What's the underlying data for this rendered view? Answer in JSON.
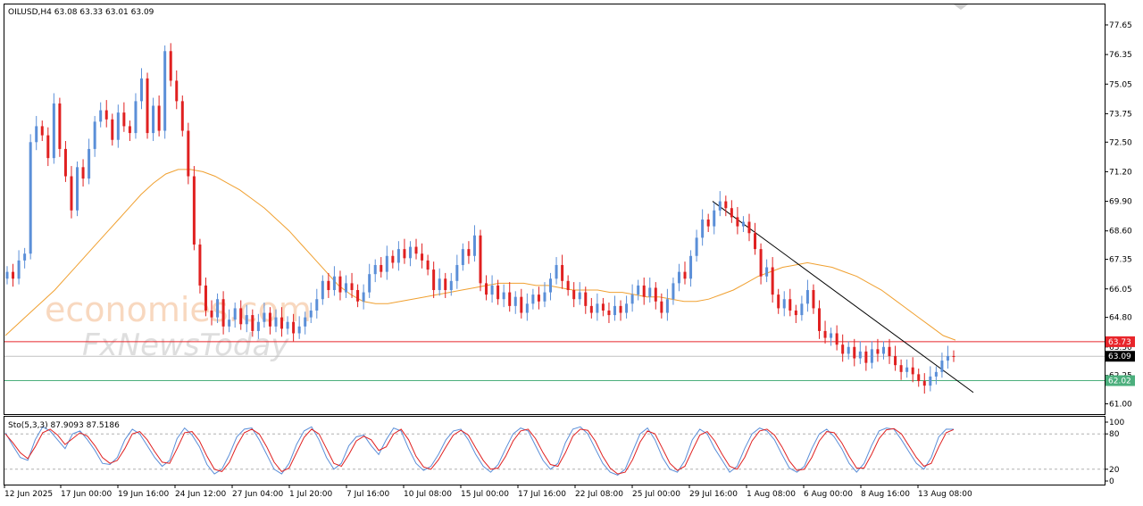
{
  "chart_data": [
    {
      "type": "candlestick",
      "title": "OILUSD,H4  63.08 63.33 63.01 63.09",
      "y_ticks": [
        "77.65",
        "76.35",
        "75.05",
        "73.75",
        "72.50",
        "71.20",
        "69.90",
        "68.60",
        "67.35",
        "66.05",
        "64.80",
        "63.50",
        "62.25",
        "61.00"
      ],
      "x_ticks": [
        "12 Jun 2025",
        "17 Jun 00:00",
        "19 Jun 16:00",
        "24 Jun 12:00",
        "27 Jun 04:00",
        "1 Jul 20:00",
        "7 Jul 16:00",
        "10 Jul 08:00",
        "15 Jul 00:00",
        "17 Jul 16:00",
        "22 Jul 08:00",
        "25 Jul 00:00",
        "29 Jul 16:00",
        "1 Aug 08:00",
        "6 Aug 00:00",
        "8 Aug 16:00",
        "13 Aug 08:00"
      ],
      "ylim": [
        60.55,
        78.55
      ],
      "price_levels": [
        {
          "label": "63.73",
          "value": 63.73,
          "color": "#e8262b"
        },
        {
          "label": "63.09",
          "value": 63.09,
          "color": "#000000"
        },
        {
          "label": "62.02",
          "value": 62.02,
          "color": "#4caf7d"
        }
      ],
      "moving_average_color": "#f0a030",
      "trendline": {
        "start": 69.9,
        "end": 61.5,
        "color": "#000000"
      },
      "bull_color": "#5b8fd8",
      "bear_color": "#e02020",
      "candles": [
        66.8,
        66.5,
        67.3,
        67.6,
        72.5,
        73.2,
        72.8,
        71.8,
        74.2,
        72.2,
        71.0,
        69.5,
        71.4,
        70.9,
        72.2,
        73.4,
        73.9,
        73.5,
        72.6,
        73.8,
        73.2,
        72.9,
        74.3,
        75.3,
        72.9,
        74.1,
        73.0,
        76.5,
        75.2,
        74.3,
        73.0,
        71.0,
        68.0,
        66.2,
        65.1,
        64.8,
        65.6,
        64.4,
        64.7,
        65.2,
        64.5,
        64.9,
        64.2,
        64.6,
        65.0,
        64.4,
        64.8,
        64.3,
        64.6,
        64.1,
        64.4,
        64.8,
        65.1,
        65.6,
        66.4,
        66.0,
        66.6,
        65.9,
        66.3,
        66.0,
        65.5,
        65.9,
        66.7,
        67.1,
        66.8,
        67.5,
        67.2,
        67.8,
        67.4,
        67.9,
        67.6,
        67.3,
        66.9,
        66.0,
        66.5,
        66.0,
        66.4,
        67.1,
        67.8,
        67.5,
        68.4,
        66.3,
        65.8,
        66.2,
        65.6,
        65.9,
        65.3,
        65.7,
        65.0,
        65.4,
        65.8,
        65.5,
        65.9,
        66.5,
        67.1,
        66.4,
        66.0,
        65.6,
        65.9,
        65.3,
        65.0,
        65.4,
        65.1,
        64.9,
        65.3,
        65.0,
        65.4,
        65.8,
        66.2,
        65.7,
        66.1,
        65.5,
        65.0,
        65.6,
        66.3,
        66.8,
        66.5,
        67.5,
        68.3,
        69.1,
        68.8,
        69.5,
        69.9,
        69.6,
        69.2,
        68.8,
        69.0,
        68.5,
        67.8,
        66.6,
        67.0,
        65.8,
        65.2,
        65.6,
        65.1,
        64.9,
        65.4,
        66.0,
        65.2,
        64.2,
        63.9,
        64.1,
        63.6,
        63.2,
        63.5,
        63.0,
        63.3,
        62.8,
        63.4,
        63.2,
        63.5,
        63.1,
        62.7,
        62.4,
        62.6,
        62.3,
        62.0,
        61.8,
        62.2,
        62.4,
        62.9,
        63.1,
        63.09
      ],
      "ma": [
        64.0,
        64.5,
        65.0,
        65.5,
        66.0,
        66.6,
        67.2,
        67.8,
        68.4,
        69.0,
        69.6,
        70.2,
        70.7,
        71.1,
        71.3,
        71.3,
        71.2,
        71.0,
        70.7,
        70.4,
        70.0,
        69.6,
        69.1,
        68.6,
        68.0,
        67.4,
        66.8,
        66.2,
        65.8,
        65.5,
        65.4,
        65.4,
        65.5,
        65.6,
        65.7,
        65.8,
        65.9,
        66.0,
        66.1,
        66.2,
        66.3,
        66.3,
        66.3,
        66.2,
        66.2,
        66.1,
        66.0,
        66.0,
        66.0,
        65.9,
        65.9,
        65.8,
        65.7,
        65.7,
        65.6,
        65.5,
        65.5,
        65.6,
        65.8,
        66.0,
        66.3,
        66.6,
        66.8,
        67.0,
        67.1,
        67.2,
        67.1,
        67.0,
        66.8,
        66.6,
        66.3,
        66.0,
        65.6,
        65.2,
        64.8,
        64.4,
        64.0,
        63.8
      ]
    },
    {
      "type": "line",
      "title": "Sto(5,3,3) 87.9093 87.5186",
      "y_ticks": [
        "100",
        "80",
        "20",
        "0"
      ],
      "ylim": [
        0,
        100
      ],
      "levels": [
        80,
        20
      ],
      "series": [
        {
          "color": "#5b8fd8",
          "values": [
            82,
            60,
            40,
            35,
            70,
            92,
            85,
            70,
            55,
            80,
            85,
            70,
            52,
            30,
            28,
            40,
            70,
            88,
            80,
            60,
            40,
            25,
            35,
            72,
            90,
            78,
            58,
            28,
            12,
            20,
            45,
            75,
            88,
            90,
            70,
            45,
            20,
            12,
            30,
            62,
            85,
            92,
            70,
            40,
            20,
            30,
            60,
            75,
            78,
            60,
            45,
            70,
            90,
            85,
            55,
            30,
            18,
            25,
            45,
            70,
            85,
            88,
            70,
            45,
            25,
            15,
            28,
            55,
            80,
            90,
            85,
            60,
            35,
            20,
            30,
            65,
            88,
            92,
            80,
            55,
            30,
            15,
            10,
            20,
            50,
            80,
            90,
            70,
            40,
            20,
            15,
            35,
            70,
            88,
            80,
            55,
            35,
            15,
            25,
            55,
            80,
            90,
            85,
            70,
            45,
            22,
            15,
            25,
            55,
            80,
            88,
            75,
            55,
            30,
            15,
            30,
            60,
            85,
            90,
            88,
            70,
            50,
            30,
            20,
            40,
            75,
            88,
            87.9
          ]
        },
        {
          "color": "#e02020",
          "values": [
            80,
            65,
            48,
            38,
            58,
            82,
            88,
            78,
            62,
            72,
            82,
            76,
            60,
            40,
            30,
            35,
            55,
            80,
            84,
            70,
            50,
            32,
            30,
            55,
            82,
            84,
            68,
            42,
            20,
            16,
            32,
            60,
            82,
            88,
            80,
            58,
            32,
            16,
            22,
            48,
            74,
            88,
            80,
            55,
            30,
            25,
            45,
            68,
            76,
            70,
            52,
            58,
            80,
            88,
            70,
            42,
            24,
            20,
            36,
            58,
            78,
            86,
            78,
            56,
            35,
            20,
            22,
            42,
            68,
            85,
            88,
            72,
            48,
            28,
            25,
            48,
            76,
            88,
            86,
            68,
            42,
            22,
            12,
            15,
            36,
            66,
            85,
            80,
            55,
            30,
            18,
            25,
            52,
            78,
            84,
            68,
            45,
            25,
            20,
            40,
            68,
            85,
            88,
            78,
            58,
            34,
            18,
            20,
            40,
            68,
            84,
            82,
            65,
            42,
            22,
            22,
            45,
            72,
            87,
            89,
            80,
            60,
            40,
            25,
            30,
            58,
            82,
            87.5
          ]
        }
      ]
    }
  ],
  "watermark": {
    "line1": "economies.com",
    "line2": "FxNewsToday"
  }
}
